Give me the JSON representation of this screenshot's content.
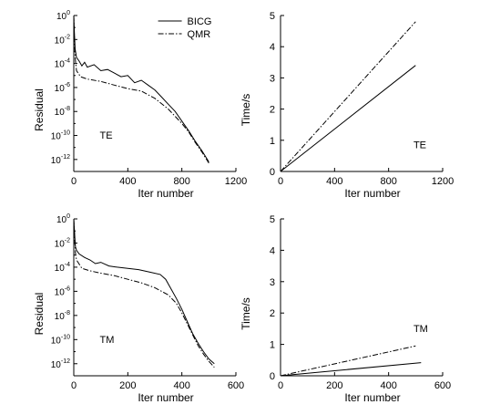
{
  "chart_data": [
    {
      "type": "line",
      "panel": "top-left",
      "xlabel": "Iter number",
      "ylabel": "Residual",
      "annotation": "TE",
      "xlim": [
        0,
        1200
      ],
      "xticks": [
        "0",
        "400",
        "800",
        "1200"
      ],
      "xtick_values": [
        0,
        400,
        800,
        1200
      ],
      "yscale": "log",
      "ylim_exp": [
        -13,
        0
      ],
      "ytick_exps": [
        0,
        -2,
        -4,
        -6,
        -8,
        -10,
        -12
      ],
      "legend": {
        "placement": "top-center",
        "entries": [
          "BICG",
          "QMR"
        ]
      },
      "series": [
        {
          "name": "BICG",
          "style": "solid",
          "x": [
            0,
            5,
            10,
            20,
            40,
            60,
            80,
            100,
            150,
            200,
            250,
            300,
            350,
            400,
            450,
            500,
            550,
            600,
            650,
            700,
            750,
            800,
            850,
            900,
            950,
            1000
          ],
          "log10_y": [
            0,
            -1.5,
            -2.8,
            -3.5,
            -3.8,
            -4.2,
            -3.9,
            -4.3,
            -4.1,
            -4.6,
            -4.5,
            -4.8,
            -5.1,
            -5.0,
            -5.6,
            -5.4,
            -5.8,
            -6.2,
            -6.8,
            -7.4,
            -8.0,
            -8.8,
            -9.6,
            -10.5,
            -11.3,
            -12.2
          ]
        },
        {
          "name": "QMR",
          "style": "dashdot",
          "x": [
            0,
            5,
            10,
            20,
            50,
            100,
            200,
            300,
            400,
            500,
            600,
            700,
            800,
            850,
            900,
            950,
            1000
          ],
          "log10_y": [
            0,
            -2.0,
            -3.5,
            -4.6,
            -5.1,
            -5.3,
            -5.5,
            -5.8,
            -6.1,
            -6.3,
            -6.9,
            -7.8,
            -9.0,
            -9.7,
            -10.6,
            -11.4,
            -12.3
          ]
        }
      ]
    },
    {
      "type": "line",
      "panel": "top-right",
      "xlabel": "Iter number",
      "ylabel": "Time/s",
      "annotation": "TE",
      "xlim": [
        0,
        1200
      ],
      "ylim": [
        0,
        5
      ],
      "xticks": [
        "0",
        "400",
        "800",
        "1200"
      ],
      "xtick_values": [
        0,
        400,
        800,
        1200
      ],
      "yticks": [
        "0",
        "1",
        "2",
        "3",
        "4",
        "5"
      ],
      "ytick_values": [
        0,
        1,
        2,
        3,
        4,
        5
      ],
      "series": [
        {
          "name": "BICG",
          "style": "solid",
          "x": [
            0,
            1000
          ],
          "y": [
            0,
            3.4
          ]
        },
        {
          "name": "QMR",
          "style": "dashdot",
          "x": [
            0,
            1000
          ],
          "y": [
            0,
            4.8
          ]
        }
      ]
    },
    {
      "type": "line",
      "panel": "bottom-left",
      "xlabel": "Iter number",
      "ylabel": "Residual",
      "annotation": "TM",
      "xlim": [
        0,
        600
      ],
      "xticks": [
        "0",
        "200",
        "400",
        "600"
      ],
      "xtick_values": [
        0,
        200,
        400,
        600
      ],
      "yscale": "log",
      "ylim_exp": [
        -13,
        0
      ],
      "ytick_exps": [
        0,
        -2,
        -4,
        -6,
        -8,
        -10,
        -12
      ],
      "series": [
        {
          "name": "BICG",
          "style": "solid",
          "x": [
            0,
            3,
            6,
            10,
            20,
            40,
            60,
            80,
            100,
            130,
            160,
            200,
            240,
            280,
            320,
            340,
            360,
            380,
            400,
            420,
            440,
            460,
            480,
            500,
            520
          ],
          "log10_y": [
            0,
            -1.2,
            -2.3,
            -2.6,
            -2.9,
            -3.2,
            -3.4,
            -3.7,
            -3.6,
            -3.9,
            -4.0,
            -4.1,
            -4.2,
            -4.4,
            -4.6,
            -5.0,
            -5.8,
            -6.6,
            -7.5,
            -8.5,
            -9.5,
            -10.3,
            -11.0,
            -11.6,
            -12.0
          ]
        },
        {
          "name": "QMR",
          "style": "dashdot",
          "x": [
            0,
            3,
            6,
            10,
            30,
            60,
            100,
            150,
            200,
            250,
            300,
            350,
            380,
            400,
            420,
            440,
            460,
            480,
            500,
            520
          ],
          "log10_y": [
            0,
            -1.5,
            -2.8,
            -3.4,
            -4.1,
            -4.3,
            -4.5,
            -4.7,
            -5.0,
            -5.3,
            -5.7,
            -6.3,
            -7.0,
            -7.8,
            -8.7,
            -9.6,
            -10.5,
            -11.2,
            -11.8,
            -12.3
          ]
        }
      ]
    },
    {
      "type": "line",
      "panel": "bottom-right",
      "xlabel": "Iter number",
      "ylabel": "Time/s",
      "annotation": "TM",
      "xlim": [
        0,
        600
      ],
      "ylim": [
        0,
        5
      ],
      "xticks": [
        "0",
        "200",
        "400",
        "600"
      ],
      "xtick_values": [
        0,
        200,
        400,
        600
      ],
      "yticks": [
        "0",
        "1",
        "2",
        "3",
        "4",
        "5"
      ],
      "ytick_values": [
        0,
        1,
        2,
        3,
        4,
        5
      ],
      "series": [
        {
          "name": "BICG",
          "style": "solid",
          "x": [
            0,
            520
          ],
          "y": [
            0,
            0.42
          ]
        },
        {
          "name": "QMR",
          "style": "dashdot",
          "x": [
            0,
            500
          ],
          "y": [
            0,
            0.95
          ]
        }
      ]
    }
  ]
}
